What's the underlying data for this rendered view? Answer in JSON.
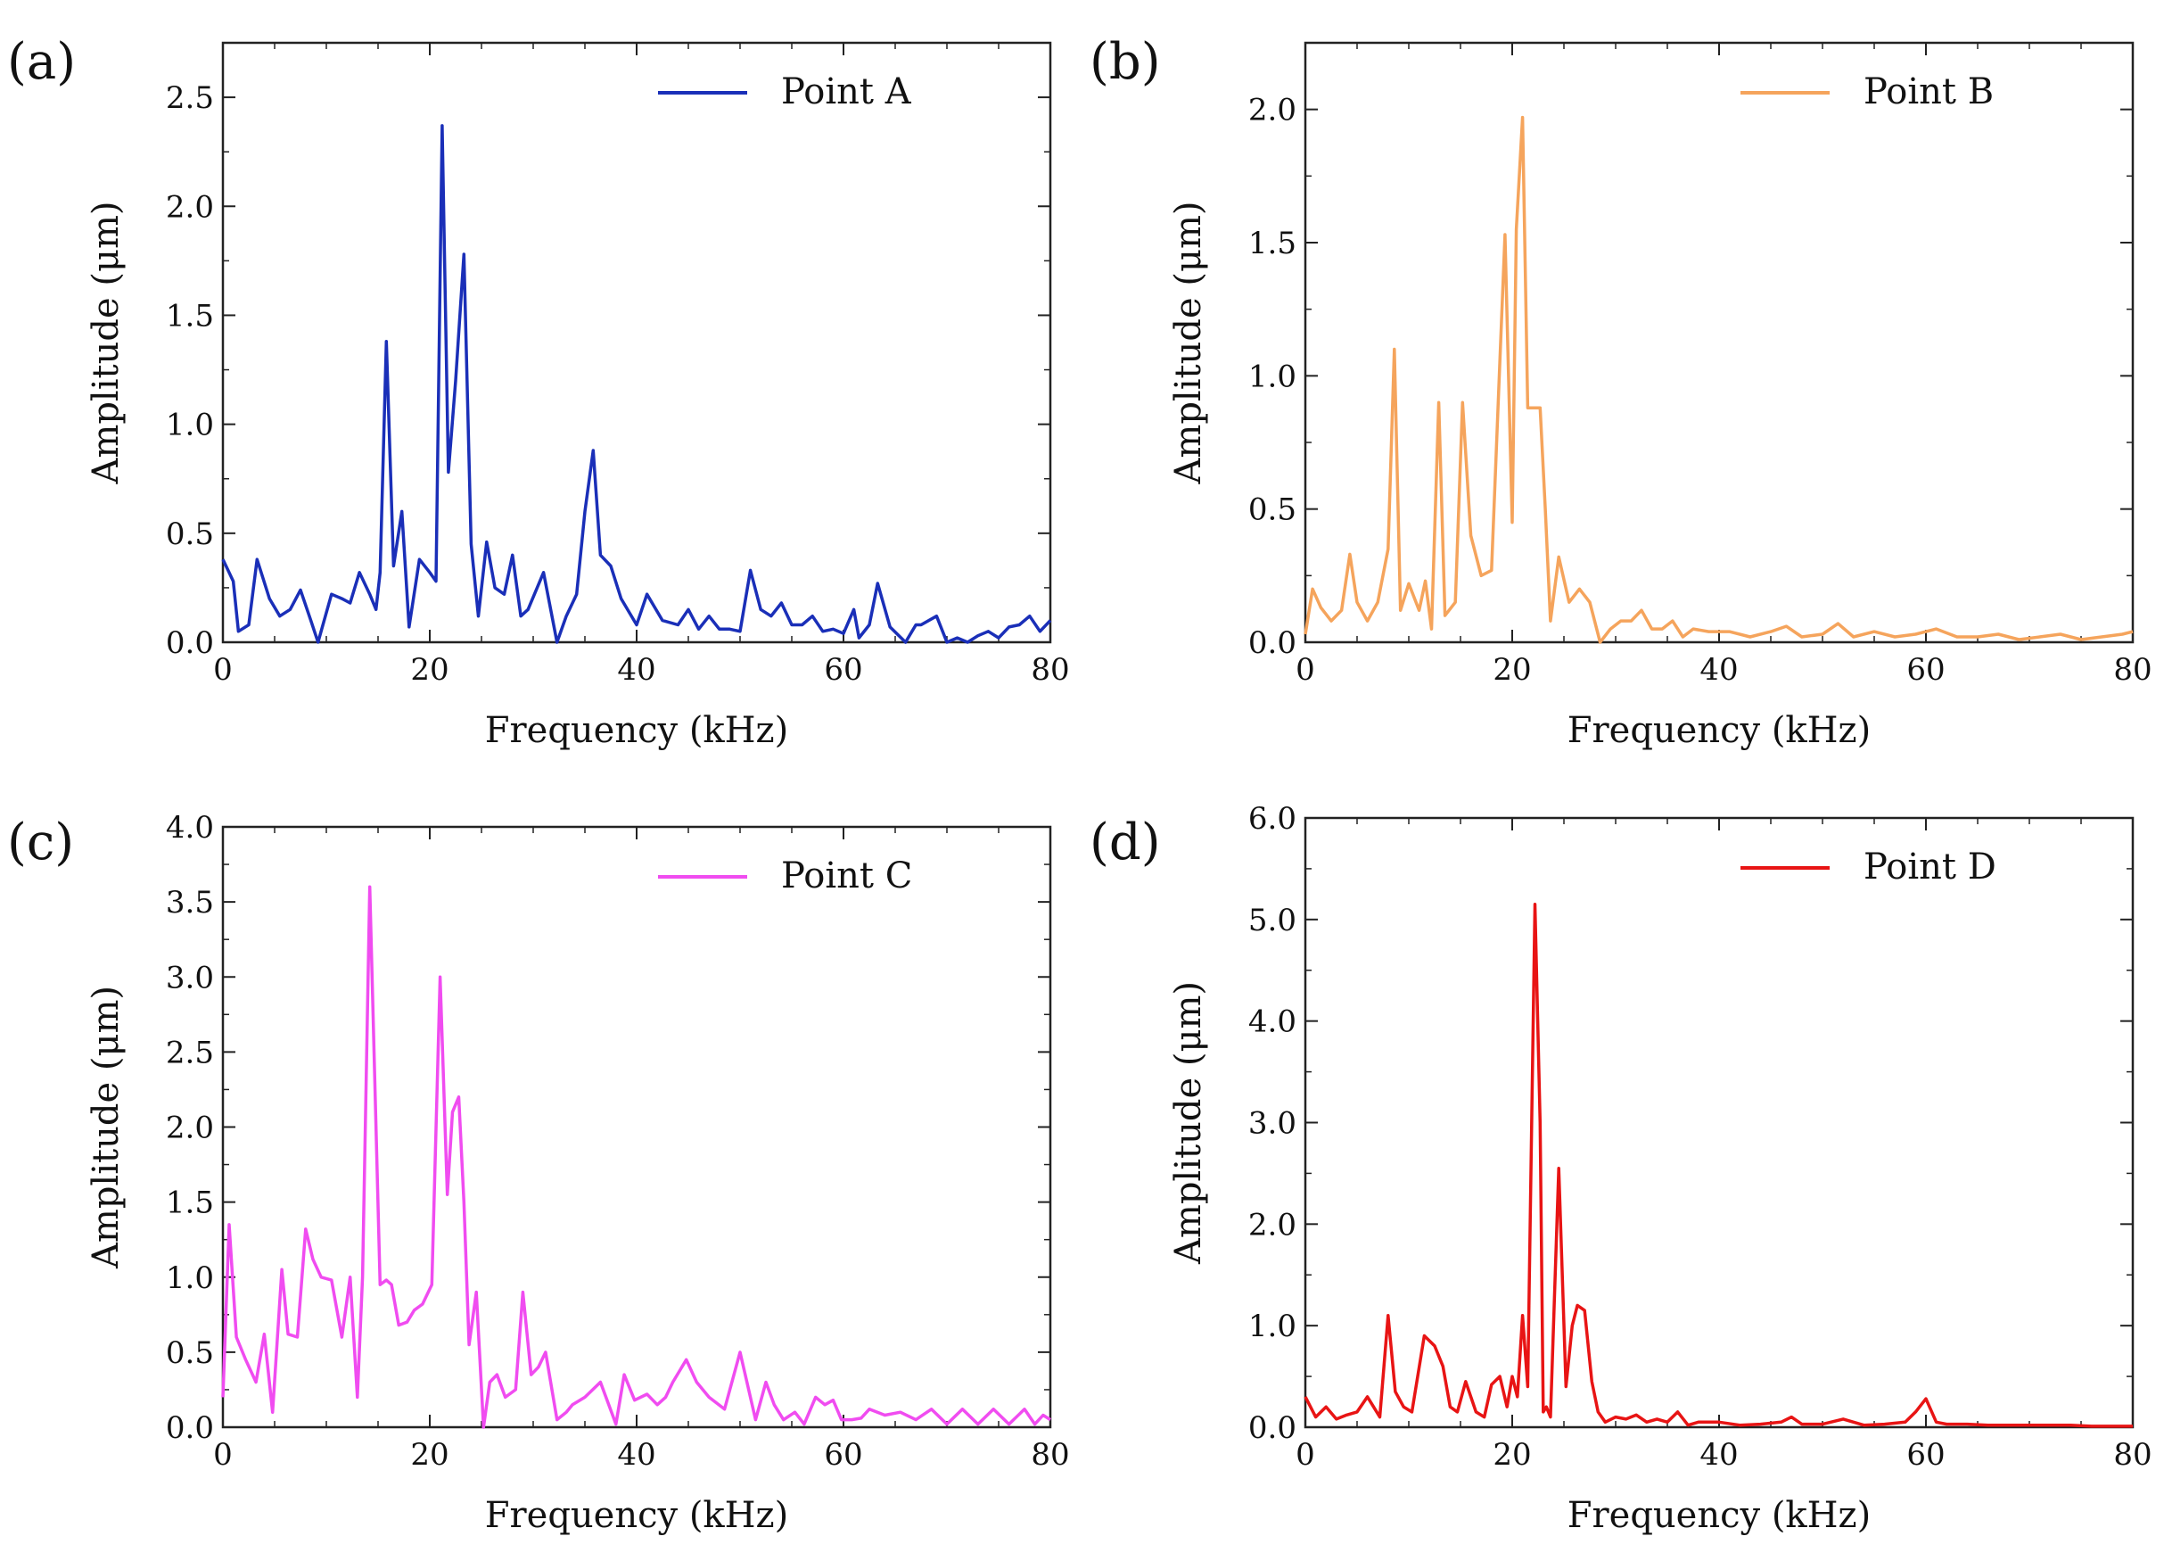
{
  "chart_data": [
    {
      "type": "line",
      "panel_label": "(a)",
      "title": "",
      "xlabel": "Frequency (kHz)",
      "ylabel": "Amplitude (μm)",
      "xlim": [
        0,
        80
      ],
      "ylim": [
        0,
        2.75
      ],
      "xticks": [
        0,
        20,
        40,
        60,
        80
      ],
      "yticks": [
        0,
        0.5,
        1.0,
        1.5,
        2.0,
        2.5
      ],
      "ytick_labels": [
        "0.0",
        "0.5",
        "1.0",
        "1.5",
        "2.0",
        "2.5"
      ],
      "legend_position": "top-right",
      "grid": false,
      "series": [
        {
          "name": "Point A",
          "color": "#1a2fb8",
          "x": [
            0,
            1,
            1.5,
            2.5,
            3.3,
            4.5,
            5.5,
            6.5,
            7.5,
            8.5,
            9.2,
            10.5,
            11.5,
            12.3,
            13.2,
            14.2,
            14.8,
            15.2,
            15.8,
            16.5,
            17.3,
            18,
            19,
            20,
            20.6,
            21.2,
            21.8,
            22.5,
            23.3,
            24,
            24.7,
            25.5,
            26.3,
            27.2,
            28,
            28.8,
            29.5,
            31,
            32.3,
            33.2,
            34.2,
            35,
            35.8,
            36.5,
            37.5,
            38.5,
            40,
            41,
            42.5,
            44,
            45,
            46,
            47,
            48,
            49,
            50,
            51,
            52,
            53,
            54,
            55,
            56,
            57,
            58,
            59,
            60,
            61,
            61.5,
            62.5,
            63.3,
            64.5,
            66,
            67,
            67.5,
            69,
            70,
            71,
            72,
            73,
            74,
            75,
            76,
            77,
            78,
            79,
            80
          ],
          "values": [
            0.38,
            0.28,
            0.05,
            0.08,
            0.38,
            0.2,
            0.12,
            0.15,
            0.24,
            0.1,
            0.0,
            0.22,
            0.2,
            0.18,
            0.32,
            0.22,
            0.15,
            0.32,
            1.38,
            0.35,
            0.6,
            0.07,
            0.38,
            0.32,
            0.28,
            2.37,
            0.78,
            1.2,
            1.78,
            0.45,
            0.12,
            0.46,
            0.25,
            0.22,
            0.4,
            0.12,
            0.15,
            0.32,
            0.0,
            0.12,
            0.22,
            0.6,
            0.88,
            0.4,
            0.35,
            0.2,
            0.08,
            0.22,
            0.1,
            0.08,
            0.15,
            0.06,
            0.12,
            0.06,
            0.06,
            0.05,
            0.33,
            0.15,
            0.12,
            0.18,
            0.08,
            0.08,
            0.12,
            0.05,
            0.06,
            0.04,
            0.15,
            0.02,
            0.08,
            0.27,
            0.07,
            0.0,
            0.08,
            0.08,
            0.12,
            0.0,
            0.02,
            0.0,
            0.03,
            0.05,
            0.02,
            0.07,
            0.08,
            0.12,
            0.05,
            0.1
          ]
        }
      ]
    },
    {
      "type": "line",
      "panel_label": "(b)",
      "title": "",
      "xlabel": "Frequency (kHz)",
      "ylabel": "Amplitude (μm)",
      "xlim": [
        0,
        80
      ],
      "ylim": [
        0,
        2.25
      ],
      "xticks": [
        0,
        20,
        40,
        60,
        80
      ],
      "yticks": [
        0,
        0.5,
        1.0,
        1.5,
        2.0
      ],
      "ytick_labels": [
        "0.0",
        "0.5",
        "1.0",
        "1.5",
        "2.0"
      ],
      "legend_position": "top-right",
      "grid": false,
      "series": [
        {
          "name": "Point B",
          "color": "#f5a45c",
          "x": [
            0,
            0.7,
            1.5,
            2.5,
            3.5,
            4.3,
            5,
            6,
            7,
            8,
            8.6,
            9.2,
            10,
            11,
            11.6,
            12.2,
            12.9,
            13.5,
            14.5,
            15.2,
            16,
            17,
            18,
            18.8,
            19.3,
            20,
            20.4,
            21,
            21.5,
            22,
            22.7,
            23.2,
            23.7,
            24.5,
            25.5,
            26.5,
            27.5,
            28.5,
            29.5,
            30.5,
            31.5,
            32.5,
            33.5,
            34.5,
            35.5,
            36.5,
            37.5,
            39,
            41,
            43,
            45,
            46.5,
            48,
            50,
            51.5,
            53,
            55,
            57,
            59,
            61,
            63,
            65,
            67,
            69,
            71,
            73,
            75,
            77,
            79,
            80
          ],
          "values": [
            0.03,
            0.2,
            0.13,
            0.08,
            0.12,
            0.33,
            0.15,
            0.08,
            0.15,
            0.35,
            1.1,
            0.12,
            0.22,
            0.12,
            0.23,
            0.05,
            0.9,
            0.1,
            0.15,
            0.9,
            0.4,
            0.25,
            0.27,
            1.05,
            1.53,
            0.45,
            1.55,
            1.97,
            0.88,
            0.88,
            0.88,
            0.5,
            0.08,
            0.32,
            0.15,
            0.2,
            0.15,
            0.0,
            0.05,
            0.08,
            0.08,
            0.12,
            0.05,
            0.05,
            0.08,
            0.02,
            0.05,
            0.04,
            0.04,
            0.02,
            0.04,
            0.06,
            0.02,
            0.03,
            0.07,
            0.02,
            0.04,
            0.02,
            0.03,
            0.05,
            0.02,
            0.02,
            0.03,
            0.01,
            0.02,
            0.03,
            0.01,
            0.02,
            0.03,
            0.04
          ]
        }
      ]
    },
    {
      "type": "line",
      "panel_label": "(c)",
      "title": "",
      "xlabel": "Frequency (kHz)",
      "ylabel": "Amplitude (μm)",
      "xlim": [
        0,
        80
      ],
      "ylim": [
        0,
        4.0
      ],
      "xticks": [
        0,
        20,
        40,
        60,
        80
      ],
      "yticks": [
        0,
        0.5,
        1.0,
        1.5,
        2.0,
        2.5,
        3.0,
        3.5,
        4.0
      ],
      "ytick_labels": [
        "0.0",
        "0.5",
        "1.0",
        "1.5",
        "2.0",
        "2.5",
        "3.0",
        "3.5",
        "4.0"
      ],
      "legend_position": "top-right",
      "grid": false,
      "series": [
        {
          "name": "Point C",
          "color": "#f04cf0",
          "x": [
            0,
            0.6,
            1.3,
            2.2,
            3.2,
            4,
            4.8,
            5.7,
            6.3,
            7.2,
            8,
            8.7,
            9.5,
            10.5,
            11.5,
            12.3,
            13,
            13.5,
            14.2,
            14.8,
            15.2,
            15.8,
            16.3,
            17,
            17.8,
            18.5,
            19.3,
            20.2,
            21,
            21.7,
            22.2,
            22.8,
            23.3,
            23.8,
            24.5,
            25.2,
            25.8,
            26.5,
            27.3,
            28.3,
            29,
            29.8,
            30.5,
            31.2,
            32.3,
            33.2,
            33.8,
            35,
            36.5,
            38,
            38.8,
            39.8,
            41,
            42,
            42.8,
            43.5,
            44.8,
            45.8,
            47,
            48.5,
            50,
            51.5,
            52.5,
            53.3,
            54.2,
            55.3,
            56.2,
            57.3,
            58.2,
            59,
            59.8,
            60.8,
            61.7,
            62.5,
            64,
            65.5,
            67,
            68.5,
            70,
            71.5,
            73,
            74.5,
            76,
            77.5,
            78.5,
            79.3,
            80
          ],
          "values": [
            0.2,
            1.35,
            0.6,
            0.45,
            0.3,
            0.62,
            0.1,
            1.05,
            0.62,
            0.6,
            1.32,
            1.12,
            1.0,
            0.98,
            0.6,
            1.0,
            0.2,
            1.0,
            3.6,
            2.0,
            0.95,
            0.98,
            0.95,
            0.68,
            0.7,
            0.78,
            0.82,
            0.95,
            3.0,
            1.55,
            2.1,
            2.2,
            1.5,
            0.55,
            0.9,
            0.0,
            0.3,
            0.35,
            0.2,
            0.25,
            0.9,
            0.35,
            0.4,
            0.5,
            0.05,
            0.1,
            0.15,
            0.2,
            0.3,
            0.02,
            0.35,
            0.18,
            0.22,
            0.15,
            0.2,
            0.3,
            0.45,
            0.3,
            0.2,
            0.12,
            0.5,
            0.05,
            0.3,
            0.15,
            0.05,
            0.1,
            0.02,
            0.2,
            0.15,
            0.18,
            0.05,
            0.05,
            0.06,
            0.12,
            0.08,
            0.1,
            0.05,
            0.12,
            0.02,
            0.12,
            0.02,
            0.12,
            0.02,
            0.12,
            0.02,
            0.08,
            0.05
          ]
        }
      ]
    },
    {
      "type": "line",
      "panel_label": "(d)",
      "title": "",
      "xlabel": "Frequency (kHz)",
      "ylabel": "Amplitude (μm)",
      "xlim": [
        0,
        80
      ],
      "ylim": [
        0,
        6.0
      ],
      "xticks": [
        0,
        20,
        40,
        60,
        80
      ],
      "yticks": [
        0,
        1.0,
        2.0,
        3.0,
        4.0,
        5.0,
        6.0
      ],
      "ytick_labels": [
        "0.0",
        "1.0",
        "2.0",
        "3.0",
        "4.0",
        "5.0",
        "6.0"
      ],
      "legend_position": "top-right",
      "grid": false,
      "series": [
        {
          "name": "Point D",
          "color": "#e81414",
          "x": [
            0,
            1,
            2,
            3,
            4,
            5,
            6,
            7.2,
            8,
            8.7,
            9.5,
            10.3,
            11.5,
            12.5,
            13.3,
            14,
            14.7,
            15.5,
            16.5,
            17.3,
            18,
            18.8,
            19.5,
            20,
            20.5,
            21,
            21.5,
            22.2,
            22.7,
            23,
            23.3,
            23.7,
            24.5,
            25.2,
            25.8,
            26.3,
            27,
            27.7,
            28.3,
            29,
            30,
            31,
            32,
            33,
            34,
            35,
            36,
            37,
            38,
            40,
            42,
            44,
            46,
            47,
            48,
            50,
            52,
            54,
            56,
            58,
            59,
            60,
            61,
            62,
            64,
            66,
            68,
            70,
            72,
            74,
            76,
            78,
            80
          ],
          "values": [
            0.3,
            0.1,
            0.2,
            0.08,
            0.12,
            0.15,
            0.3,
            0.1,
            1.1,
            0.35,
            0.2,
            0.15,
            0.9,
            0.8,
            0.6,
            0.2,
            0.15,
            0.45,
            0.15,
            0.1,
            0.42,
            0.5,
            0.2,
            0.5,
            0.3,
            1.1,
            0.4,
            5.15,
            3.0,
            0.15,
            0.2,
            0.1,
            2.55,
            0.4,
            1.0,
            1.2,
            1.15,
            0.45,
            0.15,
            0.05,
            0.1,
            0.08,
            0.12,
            0.05,
            0.08,
            0.05,
            0.15,
            0.02,
            0.05,
            0.05,
            0.02,
            0.03,
            0.05,
            0.1,
            0.03,
            0.03,
            0.08,
            0.02,
            0.03,
            0.05,
            0.15,
            0.28,
            0.05,
            0.03,
            0.03,
            0.02,
            0.02,
            0.02,
            0.02,
            0.02,
            0.01,
            0.01,
            0.01
          ]
        }
      ]
    }
  ]
}
